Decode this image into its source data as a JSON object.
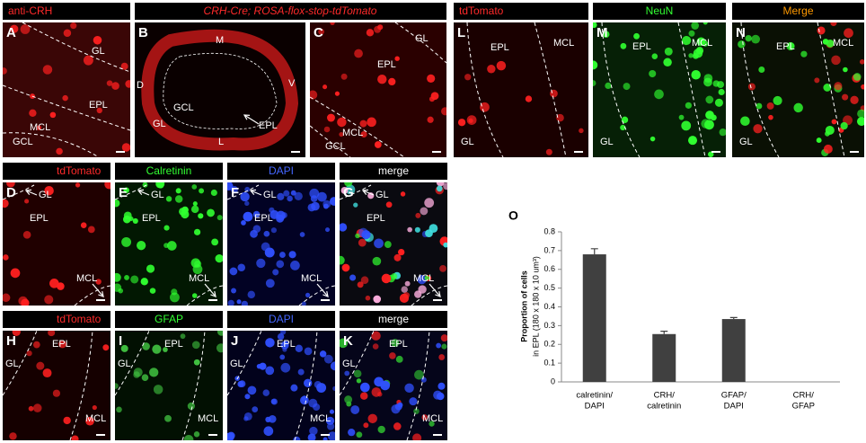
{
  "shared_header": "CRH-Cre; ROSA-flox-stop-tdTomato",
  "panels": [
    {
      "letter": "A",
      "header": "anti-CRH",
      "header_color": "#ff2a2a",
      "labels": [
        "GL",
        "EPL",
        "MCL",
        "GCL"
      ]
    },
    {
      "letter": "B",
      "labels": [
        "M",
        "D",
        "V",
        "GCL",
        "GL",
        "L",
        "EPL"
      ]
    },
    {
      "letter": "C",
      "labels": [
        "GL",
        "EPL",
        "MCL",
        "GCL"
      ]
    },
    {
      "letter": "L",
      "header": "tdTomato",
      "header_color": "#ff2a2a",
      "labels": [
        "EPL",
        "MCL",
        "GL"
      ]
    },
    {
      "letter": "M",
      "header": "NeuN",
      "header_color": "#33ff33",
      "labels": [
        "EPL",
        "MCL",
        "GL"
      ]
    },
    {
      "letter": "N",
      "header": "Merge",
      "header_color": "#ff9900",
      "labels": [
        "EPL",
        "MCL",
        "GL"
      ]
    },
    {
      "letter": "D",
      "header": "tdTomato",
      "header_color": "#ff2a2a",
      "labels": [
        "GL",
        "EPL",
        "MCL"
      ]
    },
    {
      "letter": "E",
      "header": "Calretinin",
      "header_color": "#33ff33",
      "labels": [
        "GL",
        "EPL",
        "MCL"
      ]
    },
    {
      "letter": "F",
      "header": "DAPI",
      "header_color": "#4466ff",
      "labels": [
        "GL",
        "EPL",
        "MCL"
      ]
    },
    {
      "letter": "G",
      "header": "merge",
      "header_color": "#ffffff",
      "labels": [
        "GL",
        "EPL",
        "MCL"
      ]
    },
    {
      "letter": "H",
      "header": "tdTomato",
      "header_color": "#ff2a2a",
      "labels": [
        "EPL",
        "GL",
        "MCL"
      ]
    },
    {
      "letter": "I",
      "header": "GFAP",
      "header_color": "#33ff33",
      "labels": [
        "EPL",
        "GL",
        "MCL"
      ]
    },
    {
      "letter": "J",
      "header": "DAPI",
      "header_color": "#4466ff",
      "labels": [
        "EPL",
        "GL",
        "MCL"
      ]
    },
    {
      "letter": "K",
      "header": "merge",
      "header_color": "#ffffff",
      "labels": [
        "EPL",
        "GL",
        "MCL"
      ]
    }
  ],
  "chart_data": {
    "type": "bar",
    "panel_letter": "O",
    "ylabel": [
      "Proportion of cells",
      "in EPL (180 x 180 x 10 um³)"
    ],
    "categories": [
      [
        "calretinin/",
        "DAPI"
      ],
      [
        "CRH/",
        "calretinin"
      ],
      [
        "GFAP/",
        "DAPI"
      ],
      [
        "CRH/",
        "GFAP"
      ]
    ],
    "values": [
      0.68,
      0.255,
      0.335,
      0
    ],
    "errors": [
      0.03,
      0.015,
      0.008,
      null
    ],
    "color": "#404040",
    "ylim": [
      0,
      0.8
    ],
    "yticks": [
      0,
      0.1,
      0.2,
      0.3,
      0.4,
      0.5,
      0.6,
      0.7,
      0.8
    ]
  }
}
